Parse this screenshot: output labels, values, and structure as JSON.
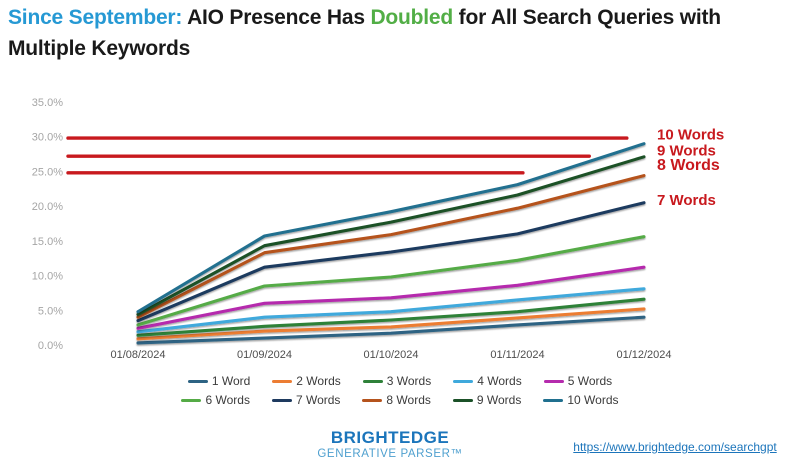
{
  "title": {
    "segments": [
      {
        "text": "Since September: ",
        "color": "#2699D4"
      },
      {
        "text": "AIO Presence Has ",
        "color": "#1A1A1A"
      },
      {
        "text": "Doubled",
        "color": "#52AE46"
      },
      {
        "text": " for All Search Queries with",
        "color": "#1A1A1A"
      },
      {
        "text": "Multiple Keywords",
        "color": "#1A1A1A"
      }
    ]
  },
  "chart_data": {
    "type": "line",
    "title": "AIO Presence by number of keywords in search query",
    "x_categories": [
      "01/08/2024",
      "01/09/2024",
      "01/10/2024",
      "01/11/2024",
      "01/12/2024"
    ],
    "xlabel": "",
    "ylabel": "",
    "ylim": [
      0,
      35
    ],
    "ytick_labels": [
      "0.0%",
      "5.0%",
      "10.0%",
      "15.0%",
      "20.0%",
      "25.0%",
      "30.0%",
      "35.0%"
    ],
    "grid": false,
    "legend_position": "bottom",
    "series": [
      {
        "name": "1 Word",
        "color": "#2D6383",
        "values": [
          0.3,
          1.0,
          1.7,
          2.9,
          4.0
        ]
      },
      {
        "name": "2 Words",
        "color": "#EC7D33",
        "values": [
          0.9,
          2.0,
          2.6,
          3.9,
          5.2
        ]
      },
      {
        "name": "3 Words",
        "color": "#2F8139",
        "values": [
          1.4,
          2.7,
          3.6,
          4.8,
          6.6
        ]
      },
      {
        "name": "4 Words",
        "color": "#3FA9DC",
        "values": [
          1.9,
          4.0,
          4.8,
          6.5,
          8.1
        ]
      },
      {
        "name": "5 Words",
        "color": "#B52BAD",
        "values": [
          2.4,
          6.0,
          6.8,
          8.6,
          11.2
        ]
      },
      {
        "name": "6 Words",
        "color": "#55AB46",
        "values": [
          2.9,
          8.5,
          9.8,
          12.2,
          15.6
        ]
      },
      {
        "name": "7 Words",
        "color": "#1E3A5F",
        "values": [
          3.5,
          11.2,
          13.4,
          16.0,
          20.5
        ]
      },
      {
        "name": "8 Words",
        "color": "#B5531D",
        "values": [
          4.0,
          13.3,
          15.9,
          19.7,
          24.4
        ]
      },
      {
        "name": "9 Words",
        "color": "#1B5128",
        "values": [
          4.4,
          14.3,
          17.7,
          21.6,
          27.1
        ]
      },
      {
        "name": "10 Words",
        "color": "#20708F",
        "values": [
          4.8,
          15.7,
          19.2,
          23.1,
          29.0
        ]
      }
    ],
    "annotations": {
      "color": "#C8191E",
      "reference_lines": [
        {
          "value": 29.8,
          "x_end_frac": 0.952
        },
        {
          "value": 27.2,
          "x_end_frac": 0.888
        },
        {
          "value": 24.8,
          "x_end_frac": 0.775
        }
      ],
      "labels": [
        {
          "text": "10 Words",
          "value": 30.3,
          "bold": false
        },
        {
          "text": "9 Words",
          "value": 28.0,
          "bold": false
        },
        {
          "text": "8 Words",
          "value": 25.9,
          "bold": true
        },
        {
          "text": "7 Words",
          "value": 20.9,
          "bold": false
        }
      ]
    }
  },
  "footer": {
    "brand_name": "BRIGHTEDGE",
    "brand_sub": "GENERATIVE PARSER™",
    "brand_color": "#1B75BB",
    "brand_sub_color": "#4FA0CF",
    "link_text": "https://www.brightedge.com/searchgpt",
    "link_color": "#1C75BB"
  }
}
